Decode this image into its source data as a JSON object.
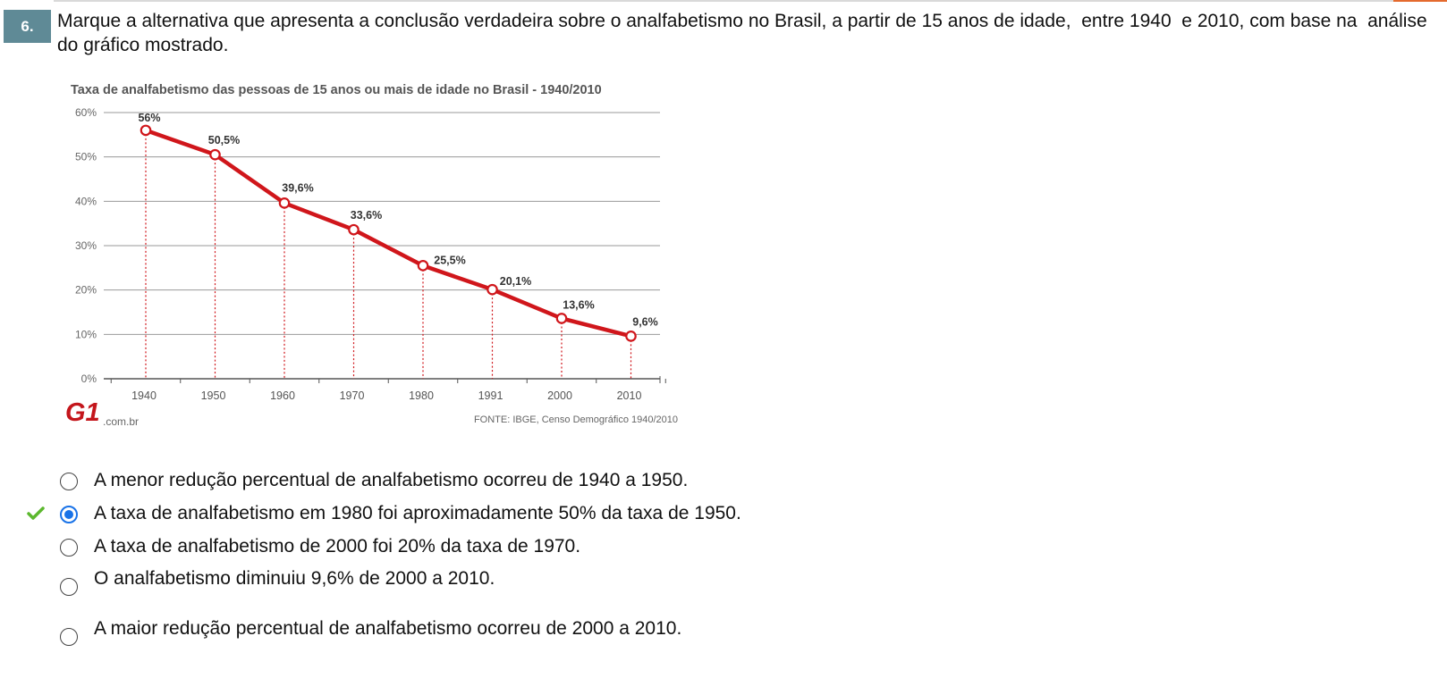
{
  "question": {
    "number": "6.",
    "text": "Marque a alternativa que apresenta a conclusão verdadeira sobre o analfabetismo no Brasil, a partir de 15 anos de idade,  entre 1940  e 2010, com base na  análise do gráfico mostrado."
  },
  "chart_data": {
    "type": "line",
    "title": "Taxa de analfabetismo das pessoas de 15 anos ou mais de idade no Brasil - 1940/2010",
    "categories": [
      "1940",
      "1950",
      "1960",
      "1970",
      "1980",
      "1991",
      "2000",
      "2010"
    ],
    "series": [
      {
        "values": [
          56,
          50.5,
          39.6,
          33.6,
          25.5,
          20.1,
          13.6,
          9.6
        ]
      }
    ],
    "data_labels": [
      "56%",
      "50,5%",
      "39,6%",
      "33,6%",
      "25,5%",
      "20,1%",
      "13,6%",
      "9,6%"
    ],
    "y_ticks": [
      "0%",
      "10%",
      "20%",
      "30%",
      "40%",
      "50%",
      "60%"
    ],
    "ylim": [
      0,
      60
    ],
    "grid": true,
    "line_color": "#d0161b",
    "source": "FONTE: IBGE, Censo Demográfico 1940/2010",
    "logo_text": ".com.br",
    "logo_mark": "G1",
    "logo_color": "#c4161c"
  },
  "options": [
    {
      "text": "A menor redução percentual de analfabetismo ocorreu de 1940 a 1950.",
      "selected": false,
      "correct": false
    },
    {
      "text": "A taxa de analfabetismo em 1980 foi aproximadamente 50% da taxa de 1950.",
      "selected": true,
      "correct": true
    },
    {
      "text": "A taxa de analfabetismo de 2000 foi 20% da taxa de 1970.",
      "selected": false,
      "correct": false
    },
    {
      "text": "O analfabetismo diminuiu 9,6% de 2000 a 2010.",
      "selected": false,
      "correct": false
    },
    {
      "text": "A maior redução percentual de analfabetismo ocorreu de 2000 a 2010.",
      "selected": false,
      "correct": false
    }
  ],
  "colors": {
    "selected_radio": "#1a73e8",
    "correct_check": "#5cb82e",
    "number_badge": "#5f8a96"
  },
  "icons": {
    "correct": "checkmark-icon"
  }
}
